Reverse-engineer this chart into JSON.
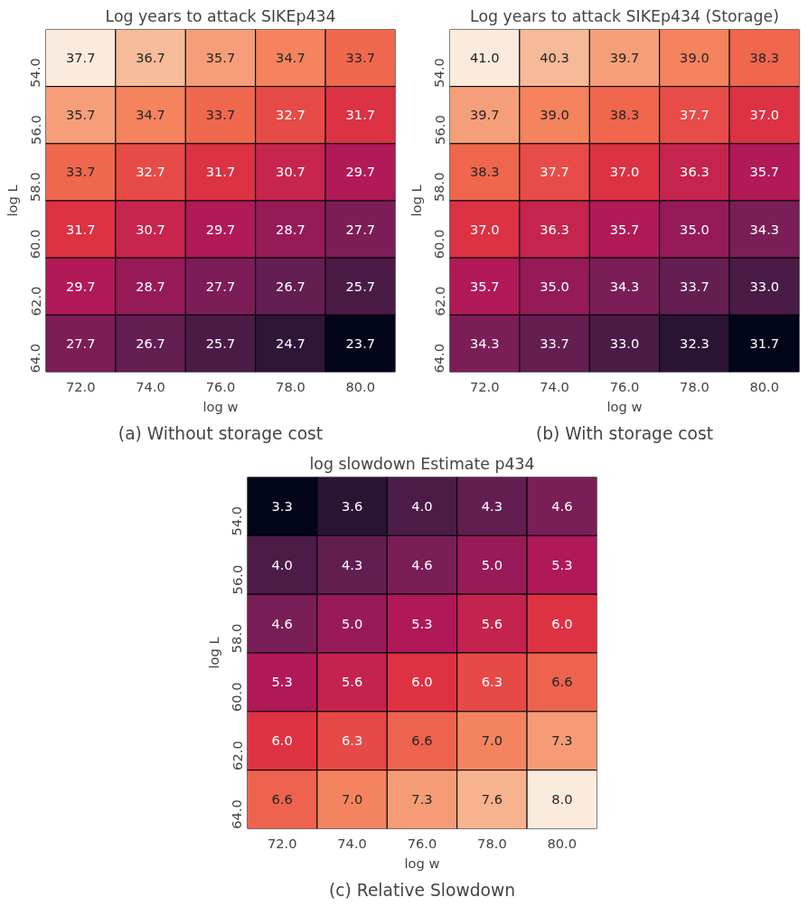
{
  "chart_data": [
    {
      "type": "heatmap",
      "title": "Log years to attack SIKEp434",
      "xlabel": "log w",
      "ylabel": "log L",
      "categories": [
        "72.0",
        "74.0",
        "76.0",
        "78.0",
        "80.0"
      ],
      "y_categories": [
        "54.0",
        "56.0",
        "58.0",
        "60.0",
        "62.0",
        "64.0"
      ],
      "cells": [
        [
          37.7,
          36.7,
          35.7,
          34.7,
          33.7
        ],
        [
          35.7,
          34.7,
          33.7,
          32.7,
          31.7
        ],
        [
          33.7,
          32.7,
          31.7,
          30.7,
          29.7
        ],
        [
          31.7,
          30.7,
          29.7,
          28.7,
          27.7
        ],
        [
          29.7,
          28.7,
          27.7,
          26.7,
          25.7
        ],
        [
          27.7,
          26.7,
          25.7,
          24.7,
          23.7
        ]
      ],
      "cell_labels": [
        [
          "37.7",
          "36.7",
          "35.7",
          "34.7",
          "33.7"
        ],
        [
          "35.7",
          "34.7",
          "33.7",
          "32.7",
          "31.7"
        ],
        [
          "33.7",
          "32.7",
          "31.7",
          "30.7",
          "29.7"
        ],
        [
          "31.7",
          "30.7",
          "29.7",
          "28.7",
          "27.7"
        ],
        [
          "29.7",
          "28.7",
          "27.7",
          "26.7",
          "25.7"
        ],
        [
          "27.7",
          "26.7",
          "25.7",
          "24.7",
          "23.7"
        ]
      ],
      "annotations": [
        "(a) Without storage cost"
      ]
    },
    {
      "type": "heatmap",
      "title": "Log years to attack SIKEp434 (Storage)",
      "xlabel": "log w",
      "ylabel": "log L",
      "categories": [
        "72.0",
        "74.0",
        "76.0",
        "78.0",
        "80.0"
      ],
      "y_categories": [
        "54.0",
        "56.0",
        "58.0",
        "60.0",
        "62.0",
        "64.0"
      ],
      "cells": [
        [
          41.0,
          40.3,
          39.7,
          39.0,
          38.3
        ],
        [
          39.7,
          39.0,
          38.3,
          37.7,
          37.0
        ],
        [
          38.3,
          37.7,
          37.0,
          36.3,
          35.7
        ],
        [
          37.0,
          36.3,
          35.7,
          35.0,
          34.3
        ],
        [
          35.7,
          35.0,
          34.3,
          33.7,
          33.0
        ],
        [
          34.3,
          33.7,
          33.0,
          32.3,
          31.7
        ]
      ],
      "cell_labels": [
        [
          "41.0",
          "40.3",
          "39.7",
          "39.0",
          "38.3"
        ],
        [
          "39.7",
          "39.0",
          "38.3",
          "37.7",
          "37.0"
        ],
        [
          "38.3",
          "37.7",
          "37.0",
          "36.3",
          "35.7"
        ],
        [
          "37.0",
          "36.3",
          "35.7",
          "35.0",
          "34.3"
        ],
        [
          "35.7",
          "35.0",
          "34.3",
          "33.7",
          "33.0"
        ],
        [
          "34.3",
          "33.7",
          "33.0",
          "32.3",
          "31.7"
        ]
      ],
      "annotations": [
        "(b) With storage cost"
      ]
    },
    {
      "type": "heatmap",
      "title": "log slowdown Estimate p434",
      "xlabel": "log w",
      "ylabel": "log L",
      "categories": [
        "72.0",
        "74.0",
        "76.0",
        "78.0",
        "80.0"
      ],
      "y_categories": [
        "54.0",
        "56.0",
        "58.0",
        "60.0",
        "62.0",
        "64.0"
      ],
      "cells": [
        [
          3.3,
          3.6,
          4.0,
          4.3,
          4.6
        ],
        [
          4.0,
          4.3,
          4.6,
          5.0,
          5.3
        ],
        [
          4.6,
          5.0,
          5.3,
          5.6,
          6.0
        ],
        [
          5.3,
          5.6,
          6.0,
          6.3,
          6.6
        ],
        [
          6.0,
          6.3,
          6.6,
          7.0,
          7.3
        ],
        [
          6.6,
          7.0,
          7.3,
          7.6,
          8.0
        ]
      ],
      "cell_labels": [
        [
          "3.3",
          "3.6",
          "4.0",
          "4.3",
          "4.6"
        ],
        [
          "4.0",
          "4.3",
          "4.6",
          "5.0",
          "5.3"
        ],
        [
          "4.6",
          "5.0",
          "5.3",
          "5.6",
          "6.0"
        ],
        [
          "5.3",
          "5.6",
          "6.0",
          "6.3",
          "6.6"
        ],
        [
          "6.0",
          "6.3",
          "6.6",
          "7.0",
          "7.3"
        ],
        [
          "6.6",
          "7.0",
          "7.3",
          "7.6",
          "8.0"
        ]
      ],
      "annotations": [
        "(c) Relative Slowdown"
      ]
    }
  ]
}
